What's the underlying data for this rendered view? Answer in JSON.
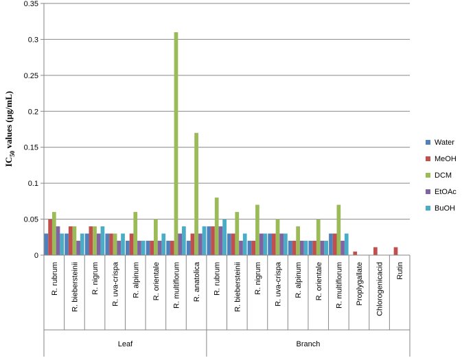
{
  "chart_data": {
    "type": "bar",
    "title": "",
    "xlabel": "",
    "ylabel": {
      "main": "IC",
      "sub": "50",
      "rest": " values (µg/mL)"
    },
    "ylim": [
      0,
      0.35
    ],
    "yticks": [
      0,
      0.05,
      0.1,
      0.15,
      0.2,
      0.25,
      0.3,
      0.35
    ],
    "ytick_labels": [
      "0",
      "0.05",
      "0.1",
      "0.15",
      "0.2",
      "0.25",
      "0.3",
      "0.35"
    ],
    "grid": true,
    "legend_position": "right",
    "categories": [
      "R. rubrum",
      "R. biebersteinii",
      "R. nigrum",
      "R. uva-crispa",
      "R. alpinum",
      "R. orientale",
      "R. multiflorum",
      "R. anatolica",
      "R. rubrum",
      "R. biebersteinii",
      "R. nigrum",
      "R. uva-crispa",
      "R. alpinum",
      "R. orientale",
      "R. multiflorum",
      "Proplygallate",
      "Chlorogenicacid",
      "Rutin"
    ],
    "groups": [
      {
        "label": "Leaf",
        "start": 0,
        "end": 8
      },
      {
        "label": "Branch",
        "start": 8,
        "end": 18
      }
    ],
    "series": [
      {
        "name": "Water",
        "color": "#4F81BD",
        "values": [
          0.03,
          0.03,
          0.03,
          0.03,
          0.02,
          0.02,
          0.02,
          0.02,
          0.04,
          0.03,
          0.02,
          0.03,
          0.02,
          0.02,
          0.03,
          null,
          null,
          null
        ]
      },
      {
        "name": "MeOH",
        "color": "#C0504D",
        "values": [
          0.05,
          0.04,
          0.04,
          0.03,
          0.03,
          0.02,
          0.02,
          0.03,
          0.04,
          0.03,
          0.02,
          0.03,
          0.02,
          0.02,
          0.03,
          0.005,
          0.011,
          0.011
        ]
      },
      {
        "name": "DCM",
        "color": "#9BBB59",
        "values": [
          0.06,
          0.04,
          0.04,
          0.03,
          0.06,
          0.05,
          0.31,
          0.17,
          0.08,
          0.06,
          0.07,
          0.05,
          0.04,
          0.05,
          0.07,
          null,
          null,
          null
        ]
      },
      {
        "name": "EtOAc",
        "color": "#8064A2",
        "values": [
          0.04,
          0.02,
          0.03,
          0.02,
          0.02,
          0.02,
          0.03,
          0.03,
          0.04,
          0.02,
          0.03,
          0.03,
          0.02,
          0.02,
          0.02,
          null,
          null,
          null
        ]
      },
      {
        "name": "BuOH",
        "color": "#4BACC6",
        "values": [
          0.03,
          0.03,
          0.04,
          0.03,
          0.02,
          0.03,
          0.04,
          0.04,
          0.05,
          0.03,
          0.03,
          0.03,
          0.02,
          0.02,
          0.03,
          null,
          null,
          null
        ]
      }
    ]
  }
}
